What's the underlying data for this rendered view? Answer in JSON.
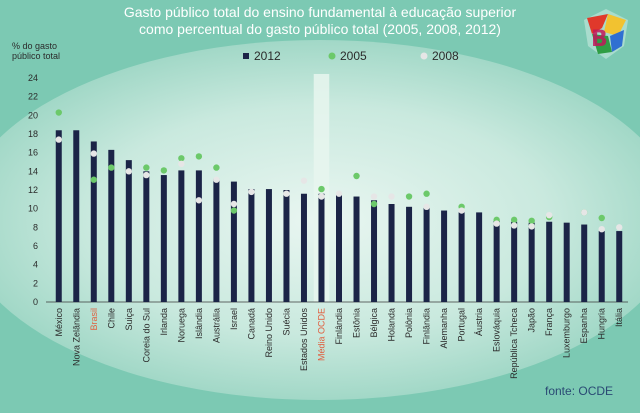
{
  "header": {
    "title_line1": "Gasto público total do ensino fundamental à educação superior",
    "title_line2": "como percentual do gasto público total (2005, 2008, 2012)"
  },
  "axis": {
    "ylabel_line1": "% do gasto",
    "ylabel_line2": "público total"
  },
  "source": "fonte: OCDE",
  "colors": {
    "bar": "#1b2447",
    "dot_2005": "#6cc96a",
    "dot_2008": "#e6e6e6",
    "highlight_label": "#e06040",
    "axis_text": "#2b2b2b",
    "oecd_band": "#e8f6ee"
  },
  "logo_icon": "brazil-shield-logo-icon",
  "chart_data": {
    "type": "bar",
    "categories": [
      "México",
      "Nova Zelândia",
      "Brasil",
      "Chile",
      "Suiça",
      "Coreia do Sul",
      "Irlanda",
      "Noruega",
      "Islândia",
      "Austrália",
      "Israel",
      "Canadá",
      "Reino Unido",
      "Suécia",
      "Estados Unidos",
      "Média OCDE",
      "Finlândia",
      "Estônia",
      "Bélgica",
      "Holanda",
      "Polônia",
      "Finlândia",
      "Alemanha",
      "Portugal",
      "Áustria",
      "Eslováquia",
      "República Tcheca",
      "Japão",
      "França",
      "Luxemburgo",
      "Espanha",
      "Hungria",
      "Itália"
    ],
    "highlight_categories": [
      "Brasil",
      "Média OCDE"
    ],
    "series": [
      {
        "name": "2012",
        "marker": "bar",
        "values": [
          18.4,
          18.4,
          17.2,
          16.3,
          15.2,
          14.0,
          13.6,
          14.1,
          14.1,
          13.2,
          12.9,
          12.1,
          12.1,
          12.0,
          11.6,
          11.6,
          11.6,
          11.3,
          10.9,
          10.5,
          10.2,
          10.1,
          9.8,
          9.6,
          9.6,
          8.7,
          8.6,
          8.5,
          8.6,
          8.5,
          8.3,
          7.6,
          7.6
        ]
      },
      {
        "name": "2005",
        "marker": "dot",
        "values": [
          20.3,
          null,
          13.1,
          14.4,
          null,
          14.4,
          14.1,
          15.4,
          15.6,
          14.4,
          9.8,
          null,
          null,
          null,
          null,
          12.1,
          null,
          13.5,
          10.5,
          null,
          11.3,
          11.6,
          null,
          10.2,
          null,
          8.8,
          8.8,
          8.7,
          9.1,
          null,
          9.6,
          9.0,
          null
        ]
      },
      {
        "name": "2008",
        "marker": "dot",
        "values": [
          17.4,
          null,
          15.9,
          null,
          14.0,
          13.6,
          null,
          14.8,
          10.9,
          13.1,
          10.5,
          11.8,
          null,
          11.6,
          13.0,
          11.3,
          11.6,
          null,
          11.3,
          11.3,
          null,
          10.2,
          null,
          9.8,
          null,
          8.4,
          8.2,
          8.1,
          9.3,
          null,
          9.6,
          7.8,
          8.0
        ]
      }
    ],
    "ylim": [
      0,
      24
    ],
    "yticks": [
      0,
      2,
      4,
      6,
      8,
      10,
      12,
      14,
      16,
      18,
      20,
      22,
      24
    ],
    "legend_position": "top-center",
    "grid": false
  }
}
